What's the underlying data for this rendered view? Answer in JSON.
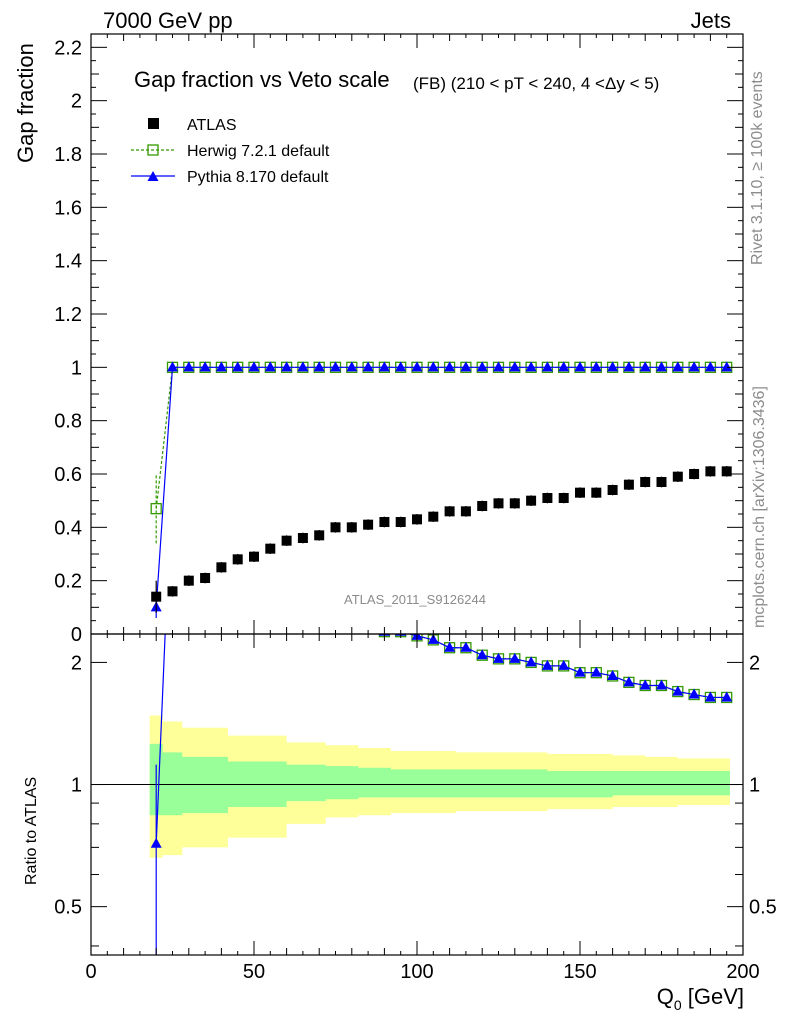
{
  "header": {
    "energy": "7000 GeV pp",
    "process": "Jets",
    "rivet": "Rivet 3.1.10, ≥ 100k events",
    "mcplots": "mcplots.cern.ch [arXiv:1306.3436]",
    "analysis": "ATLAS_2011_S9126244"
  },
  "chart_data": {
    "type": "scatter",
    "title": "Gap fraction vs Veto scale",
    "subtitle": "(FB) (210 < pT < 240, 4 <Δy < 5)",
    "xlabel": "Q",
    "xlabel_sub": "0",
    "xlabel_unit": " [GeV]",
    "ylabel": "Gap fraction",
    "ratio_ylabel": "Ratio to ATLAS",
    "xlim": [
      0,
      200
    ],
    "ylim": [
      0,
      2.25
    ],
    "ratio_ylim": [
      0.38,
      2.35
    ],
    "x_ticks": [
      "0",
      "50",
      "100",
      "150",
      "200"
    ],
    "y_ticks": [
      "0",
      "0.2",
      "0.4",
      "0.6",
      "0.8",
      "1",
      "1.2",
      "1.4",
      "1.6",
      "1.8",
      "2",
      "2.2"
    ],
    "ratio_ticks": [
      "0.5",
      "1",
      "2"
    ],
    "legend": [
      "ATLAS",
      "Herwig 7.2.1 default",
      "Pythia 8.170 default"
    ],
    "x": [
      20,
      25,
      30,
      35,
      40,
      45,
      50,
      55,
      60,
      65,
      70,
      75,
      80,
      85,
      90,
      95,
      100,
      105,
      110,
      115,
      120,
      125,
      130,
      135,
      140,
      145,
      150,
      155,
      160,
      165,
      170,
      175,
      180,
      185,
      190,
      195
    ],
    "series": [
      {
        "name": "ATLAS",
        "values": [
          0.14,
          0.16,
          0.2,
          0.21,
          0.25,
          0.28,
          0.29,
          0.32,
          0.35,
          0.36,
          0.37,
          0.4,
          0.4,
          0.41,
          0.42,
          0.42,
          0.43,
          0.44,
          0.46,
          0.46,
          0.48,
          0.49,
          0.49,
          0.5,
          0.51,
          0.51,
          0.53,
          0.53,
          0.54,
          0.56,
          0.57,
          0.57,
          0.59,
          0.6,
          0.61,
          0.61
        ],
        "errors": [
          0.06,
          0.02,
          0.02,
          0.02,
          0.02,
          0.02,
          0.02,
          0.02,
          0.02,
          0.02,
          0.02,
          0.02,
          0.02,
          0.02,
          0.02,
          0.02,
          0.02,
          0.02,
          0.02,
          0.02,
          0.02,
          0.02,
          0.02,
          0.02,
          0.02,
          0.02,
          0.02,
          0.02,
          0.02,
          0.02,
          0.02,
          0.02,
          0.02,
          0.02,
          0.02,
          0.02
        ],
        "color": "#000000"
      },
      {
        "name": "Herwig 7.2.1 default",
        "values": [
          0.47,
          1,
          1,
          1,
          1,
          1,
          1,
          1,
          1,
          1,
          1,
          1,
          1,
          1,
          1,
          1,
          1,
          1,
          1,
          1,
          1,
          1,
          1,
          1,
          1,
          1,
          1,
          1,
          1,
          1,
          1,
          1,
          1,
          1,
          1,
          1
        ],
        "errors": [
          0.13,
          0,
          0,
          0,
          0,
          0,
          0,
          0,
          0,
          0,
          0,
          0,
          0,
          0,
          0,
          0,
          0,
          0,
          0,
          0,
          0,
          0,
          0,
          0,
          0,
          0,
          0,
          0,
          0,
          0,
          0,
          0,
          0,
          0,
          0,
          0
        ],
        "color": "#339900"
      },
      {
        "name": "Pythia 8.170 default",
        "values": [
          0.1,
          1,
          1,
          1,
          1,
          1,
          1,
          1,
          1,
          1,
          1,
          1,
          1,
          1,
          1,
          1,
          1,
          1,
          1,
          1,
          1,
          1,
          1,
          1,
          1,
          1,
          1,
          1,
          1,
          1,
          1,
          1,
          1,
          1,
          1,
          1
        ],
        "errors": [
          0.04,
          0,
          0,
          0,
          0,
          0,
          0,
          0,
          0,
          0,
          0,
          0,
          0,
          0,
          0,
          0,
          0,
          0,
          0,
          0,
          0,
          0,
          0,
          0,
          0,
          0,
          0,
          0,
          0,
          0,
          0,
          0,
          0,
          0,
          0,
          0
        ],
        "color": "#0000ff"
      }
    ],
    "ratio_bands": {
      "edges": [
        18,
        22,
        28,
        42,
        60,
        72,
        82,
        92,
        112,
        140,
        160,
        170,
        180,
        196
      ],
      "inner_lo": [
        0.84,
        0.84,
        0.85,
        0.88,
        0.91,
        0.92,
        0.93,
        0.93,
        0.93,
        0.93,
        0.94,
        0.94,
        0.94
      ],
      "inner_hi": [
        1.26,
        1.2,
        1.17,
        1.14,
        1.12,
        1.11,
        1.1,
        1.09,
        1.09,
        1.08,
        1.08,
        1.08,
        1.08
      ],
      "outer_lo": [
        0.66,
        0.67,
        0.7,
        0.74,
        0.8,
        0.83,
        0.84,
        0.85,
        0.86,
        0.87,
        0.88,
        0.88,
        0.89
      ],
      "outer_hi": [
        1.48,
        1.43,
        1.38,
        1.32,
        1.27,
        1.25,
        1.23,
        1.21,
        1.2,
        1.19,
        1.18,
        1.17,
        1.16
      ],
      "inner_color": "#99ff99",
      "outer_color": "#ffff99"
    }
  }
}
